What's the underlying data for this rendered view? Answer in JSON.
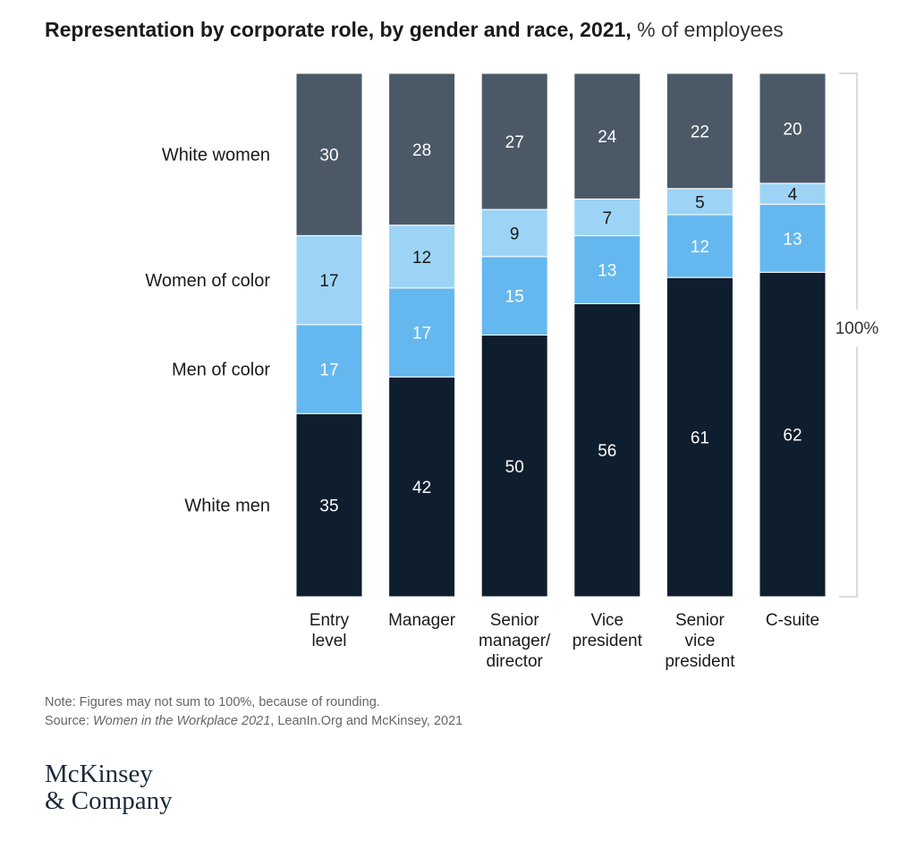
{
  "chart_data": {
    "type": "bar",
    "stacked": true,
    "title": "Representation by corporate role, by gender and race, 2021,",
    "unit": "% of employees",
    "categories": [
      [
        "Entry",
        "level"
      ],
      [
        "Manager"
      ],
      [
        "Senior",
        "manager/",
        "director"
      ],
      [
        "Vice",
        "president"
      ],
      [
        "Senior",
        "vice",
        "president"
      ],
      [
        "C-suite"
      ]
    ],
    "series": [
      {
        "name": "White men",
        "color": "#0f1e2e",
        "values": [
          35,
          42,
          50,
          56,
          61,
          62
        ]
      },
      {
        "name": "Men of color",
        "color": "#65b8ef",
        "values": [
          17,
          17,
          15,
          13,
          12,
          13
        ]
      },
      {
        "name": "Women of color",
        "color": "#9dd4f5",
        "values": [
          17,
          12,
          9,
          7,
          5,
          4
        ]
      },
      {
        "name": "White women",
        "color": "#4b5967",
        "values": [
          30,
          28,
          27,
          24,
          22,
          20
        ]
      }
    ],
    "total_label": "100%",
    "ylim": [
      0,
      100
    ]
  },
  "note": "Note: Figures may not sum to 100%, because of rounding.",
  "source_prefix": "Source: ",
  "source_title": "Women in the Workplace 2021",
  "source_rest": ", LeanIn.Org and McKinsey, 2021",
  "logo": {
    "line1": "McKinsey",
    "line2": "& Company"
  }
}
